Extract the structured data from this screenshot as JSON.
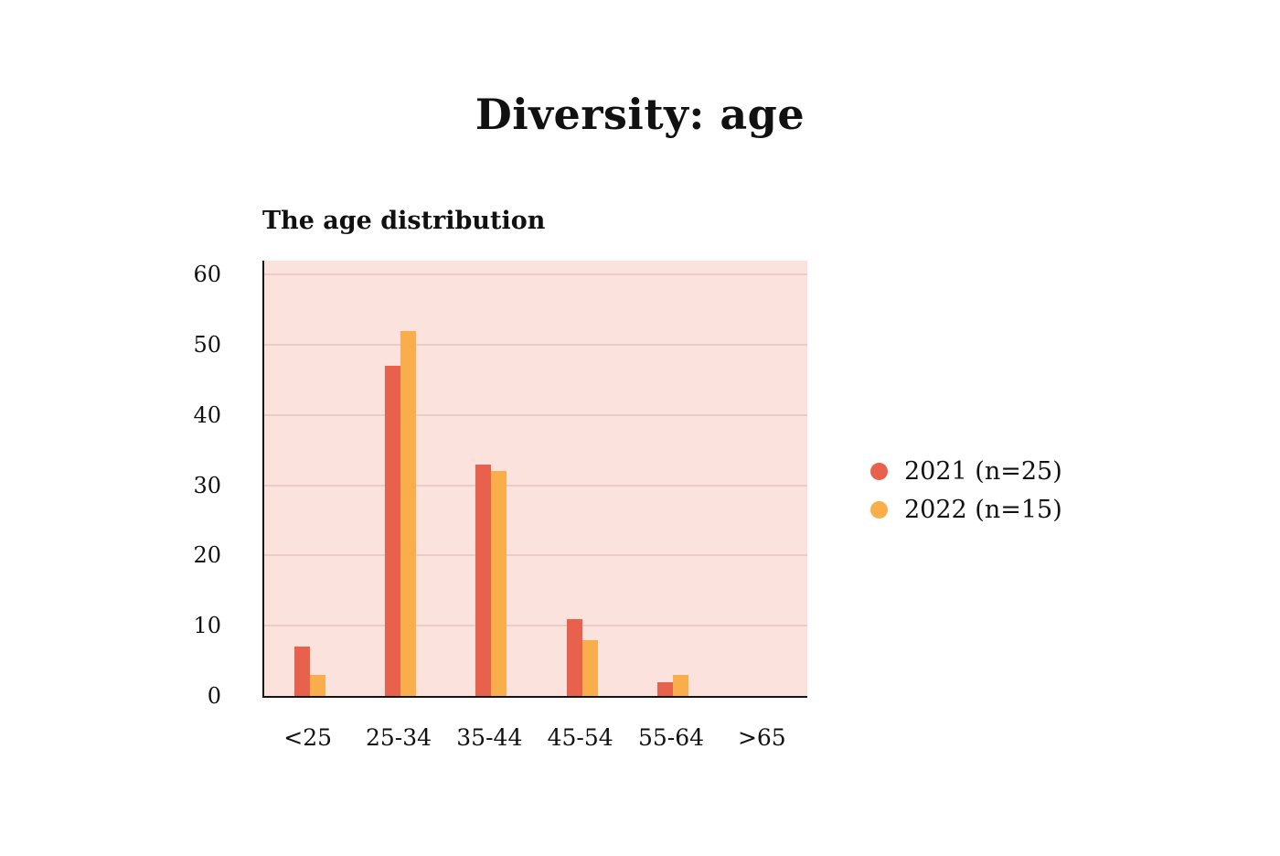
{
  "title": "Diversity: age",
  "chart_data": {
    "type": "bar",
    "title": "Diversity: age",
    "subtitle": "The age distribution",
    "categories": [
      "<25",
      "25-34",
      "35-44",
      "45-54",
      "55-64",
      ">65"
    ],
    "series": [
      {
        "name": "2021 (n=25)",
        "color": "#E8614D",
        "values": [
          7,
          47,
          33,
          11,
          2,
          0
        ]
      },
      {
        "name": "2022 (n=15)",
        "color": "#F9AE4B",
        "values": [
          3,
          52,
          32,
          8,
          3,
          0
        ]
      }
    ],
    "xlabel": "",
    "ylabel": "",
    "ylim": [
      0,
      62
    ],
    "yticks": [
      0,
      10,
      20,
      30,
      40,
      50,
      60
    ],
    "grid": true,
    "legend_position": "right",
    "plot_background": "#FCE2DC",
    "grid_color": "#EACBC6",
    "axis_color": "#141414"
  }
}
